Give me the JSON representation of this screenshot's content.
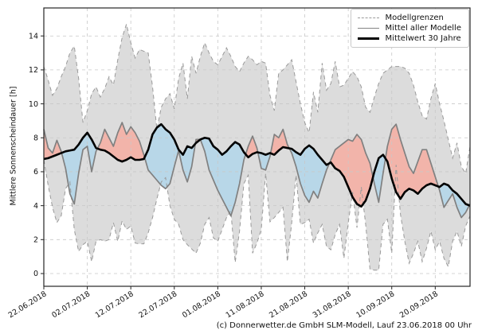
{
  "figure": {
    "y_axis_label": "Mittlere Sonnenscheindauer [h]",
    "footer": "(c) Donnerwetter.de GmbH SLM-Modell, Lauf 23.06.2018 00 Uhr"
  },
  "chart_data": {
    "type": "line",
    "title": "",
    "xlabel": "",
    "ylabel": "Mittlere Sonnenscheindauer [h]",
    "legend": [
      "Modellgrenzen",
      "Mittel aller Modelle",
      "Mittelwert 30 Jahre"
    ],
    "legend_position": "top-right",
    "grid": "dashed",
    "ylim": [
      -0.75,
      15.65
    ],
    "y_ticks": [
      0,
      2,
      4,
      6,
      8,
      10,
      12,
      14
    ],
    "x_tick_labels": [
      "22.06.2018",
      "02.07.2018",
      "12.07.2018",
      "22.07.2018",
      "01.08.2018",
      "11.08.2018",
      "21.08.2018",
      "31.08.2018",
      "10.09.2018",
      "20.09.2018"
    ],
    "x_tick_days": [
      0,
      10,
      20,
      30,
      40,
      50,
      60,
      70,
      80,
      90
    ],
    "days_total": 98,
    "colors": {
      "band": "#dcdcdc",
      "bound_line": "#9a9a9a",
      "mean_line": "#808080",
      "clim_line": "#000000",
      "fill_above": "#f2b4aa",
      "fill_below": "#b8d7e8",
      "grid": "#c8c8c8",
      "frame": "#262626"
    },
    "series": [
      {
        "key": "upper",
        "name": "Modellgrenzen (obere Grenze)",
        "style": "dashed-gray",
        "values": [
          12.2,
          11.4,
          10.5,
          10.9,
          11.6,
          12.2,
          13.0,
          13.4,
          11.5,
          8.9,
          9.6,
          10.6,
          11.0,
          10.4,
          10.9,
          11.6,
          11.1,
          12.6,
          13.9,
          14.7,
          13.6,
          12.7,
          13.2,
          13.1,
          13.0,
          11.0,
          8.5,
          9.8,
          10.3,
          10.6,
          9.7,
          11.5,
          12.4,
          10.3,
          12.8,
          11.8,
          12.8,
          13.6,
          13.0,
          12.5,
          12.3,
          12.8,
          13.3,
          12.8,
          12.2,
          11.9,
          12.4,
          12.8,
          12.6,
          12.3,
          12.5,
          12.4,
          10.5,
          9.6,
          11.8,
          12.0,
          12.3,
          12.6,
          11.3,
          10.0,
          8.9,
          8.3,
          10.7,
          9.5,
          12.4,
          10.8,
          11.2,
          12.5,
          11.0,
          11.1,
          11.5,
          11.9,
          11.6,
          11.0,
          9.8,
          9.5,
          10.4,
          11.2,
          11.8,
          12.0,
          12.2,
          12.2,
          12.2,
          12.1,
          11.8,
          11.1,
          10.1,
          9.3,
          9.1,
          10.3,
          11.2,
          10.0,
          9.0,
          7.9,
          6.8,
          7.7,
          6.3,
          5.9,
          7.5
        ]
      },
      {
        "key": "lower",
        "name": "Modellgrenzen (untere Grenze)",
        "style": "dashed-gray",
        "values": [
          6.7,
          5.2,
          3.9,
          3.0,
          3.4,
          5.0,
          5.4,
          2.6,
          1.3,
          1.7,
          1.9,
          0.7,
          1.9,
          2.0,
          1.9,
          2.0,
          3.0,
          1.9,
          3.1,
          2.6,
          2.8,
          1.8,
          1.75,
          1.75,
          2.4,
          3.3,
          4.4,
          5.4,
          5.65,
          4.0,
          3.2,
          2.9,
          2.0,
          1.7,
          1.45,
          1.2,
          1.8,
          2.9,
          3.3,
          2.1,
          1.9,
          2.6,
          3.3,
          3.7,
          0.65,
          2.5,
          5.3,
          5.8,
          1.2,
          1.8,
          2.6,
          5.9,
          3.05,
          3.3,
          3.6,
          3.9,
          0.7,
          3.0,
          5.8,
          2.9,
          3.0,
          3.2,
          1.8,
          2.4,
          2.9,
          1.6,
          1.4,
          2.3,
          2.9,
          0.9,
          3.0,
          4.8,
          2.7,
          5.1,
          2.9,
          0.25,
          0.2,
          0.2,
          2.9,
          3.2,
          1.2,
          6.4,
          3.5,
          1.9,
          0.6,
          1.2,
          1.9,
          0.7,
          1.5,
          2.5,
          1.4,
          1.9,
          0.9,
          0.4,
          1.9,
          2.5,
          1.6,
          2.8,
          3.4
        ]
      },
      {
        "key": "mean",
        "name": "Mittel aller Modelle",
        "style": "solid-gray",
        "values": [
          8.5,
          7.4,
          7.1,
          7.85,
          7.2,
          6.2,
          4.7,
          4.1,
          5.9,
          7.3,
          7.5,
          6.0,
          7.2,
          7.7,
          8.5,
          8.0,
          7.5,
          8.3,
          8.9,
          8.2,
          8.65,
          8.3,
          7.8,
          7.0,
          6.1,
          5.8,
          5.5,
          5.2,
          5.0,
          5.3,
          6.3,
          7.25,
          6.1,
          5.4,
          6.3,
          7.9,
          7.9,
          7.2,
          6.1,
          5.5,
          4.9,
          4.4,
          3.9,
          3.4,
          4.2,
          5.3,
          6.7,
          7.5,
          8.1,
          7.4,
          6.2,
          6.1,
          6.9,
          8.2,
          8.0,
          8.5,
          7.6,
          7.1,
          6.3,
          5.3,
          4.6,
          4.2,
          4.85,
          4.45,
          5.3,
          6.1,
          6.7,
          7.3,
          7.5,
          7.7,
          7.9,
          7.8,
          8.2,
          7.9,
          7.1,
          6.5,
          5.3,
          4.2,
          5.9,
          7.5,
          8.5,
          8.8,
          7.9,
          7.1,
          6.3,
          5.9,
          6.6,
          7.3,
          7.3,
          6.5,
          5.7,
          4.9,
          3.9,
          4.3,
          4.7,
          3.9,
          3.3,
          3.6,
          4.1
        ]
      },
      {
        "key": "clim",
        "name": "Mittelwert 30 Jahre",
        "style": "solid-black-thick",
        "values": [
          6.75,
          6.8,
          6.9,
          7.0,
          7.1,
          7.2,
          7.25,
          7.3,
          7.6,
          8.0,
          8.3,
          7.9,
          7.4,
          7.3,
          7.25,
          7.1,
          6.9,
          6.7,
          6.6,
          6.7,
          6.85,
          6.7,
          6.7,
          6.75,
          7.3,
          8.2,
          8.6,
          8.8,
          8.5,
          8.3,
          7.9,
          7.3,
          7.0,
          7.5,
          7.4,
          7.7,
          7.9,
          8.0,
          7.95,
          7.5,
          7.3,
          7.0,
          7.2,
          7.5,
          7.75,
          7.6,
          7.15,
          6.85,
          7.05,
          7.15,
          7.1,
          7.0,
          7.1,
          7.0,
          7.25,
          7.45,
          7.4,
          7.35,
          7.15,
          7.0,
          7.35,
          7.55,
          7.35,
          7.0,
          6.7,
          6.4,
          6.55,
          6.2,
          6.05,
          5.7,
          5.1,
          4.5,
          4.1,
          3.95,
          4.3,
          5.0,
          6.0,
          6.8,
          7.0,
          6.6,
          5.6,
          4.8,
          4.4,
          4.8,
          5.0,
          4.9,
          4.7,
          5.0,
          5.2,
          5.3,
          5.2,
          5.1,
          5.3,
          5.2,
          4.9,
          4.7,
          4.4,
          4.1,
          4.0
        ]
      }
    ],
    "footer": "(c) Donnerwetter.de GmbH SLM-Modell, Lauf 23.06.2018 00 Uhr"
  }
}
